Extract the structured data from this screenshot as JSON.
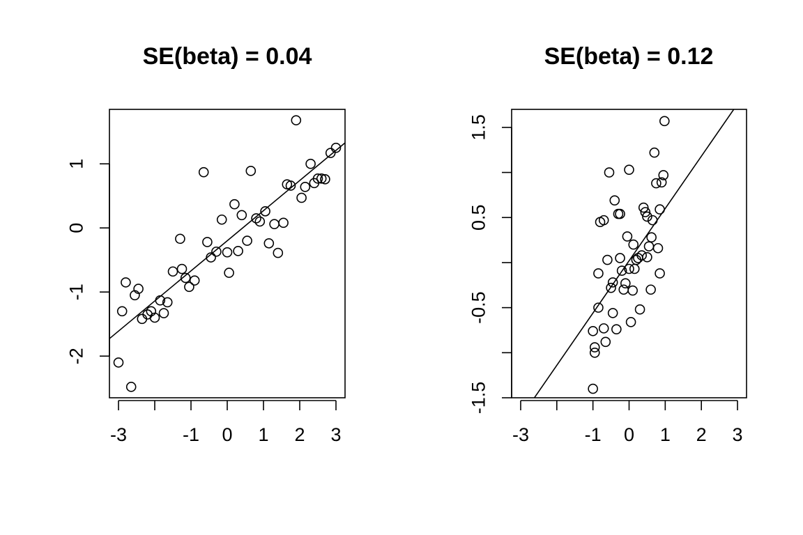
{
  "chart_data": [
    {
      "type": "scatter",
      "title": "SE(beta) = 0.04",
      "xlabel": "",
      "ylabel": "",
      "xlim": [
        -3.25,
        3.25
      ],
      "ylim": [
        -2.65,
        1.85
      ],
      "x_ticks": [
        -3,
        -2,
        -1,
        0,
        1,
        2,
        3
      ],
      "x_tick_labels": [
        "-3",
        "",
        "-1",
        "0",
        "1",
        "2",
        "3"
      ],
      "y_ticks": [
        -2,
        -1,
        0,
        1
      ],
      "y_tick_labels": [
        "-2",
        "-1",
        "0",
        "1"
      ],
      "fit_line": {
        "intercept": -0.2,
        "slope": 0.47
      },
      "points": [
        [
          -3.0,
          -2.1
        ],
        [
          -2.9,
          -1.3
        ],
        [
          -2.8,
          -0.85
        ],
        [
          -2.65,
          -2.48
        ],
        [
          -2.55,
          -1.05
        ],
        [
          -2.45,
          -0.95
        ],
        [
          -2.35,
          -1.42
        ],
        [
          -2.2,
          -1.35
        ],
        [
          -2.1,
          -1.3
        ],
        [
          -2.0,
          -1.4
        ],
        [
          -1.85,
          -1.13
        ],
        [
          -1.65,
          -1.16
        ],
        [
          -1.75,
          -1.33
        ],
        [
          -1.5,
          -0.68
        ],
        [
          -1.25,
          -0.64
        ],
        [
          -1.15,
          -0.78
        ],
        [
          -1.05,
          -0.92
        ],
        [
          -1.3,
          -0.17
        ],
        [
          -0.9,
          -0.82
        ],
        [
          -0.65,
          0.87
        ],
        [
          -0.55,
          -0.22
        ],
        [
          -0.45,
          -0.46
        ],
        [
          -0.3,
          -0.37
        ],
        [
          -0.15,
          0.13
        ],
        [
          0.0,
          -0.38
        ],
        [
          0.05,
          -0.7
        ],
        [
          0.2,
          0.37
        ],
        [
          0.3,
          -0.36
        ],
        [
          0.4,
          0.2
        ],
        [
          0.55,
          -0.2
        ],
        [
          0.65,
          0.89
        ],
        [
          0.8,
          0.15
        ],
        [
          0.9,
          0.1
        ],
        [
          1.05,
          0.26
        ],
        [
          1.15,
          -0.24
        ],
        [
          1.3,
          0.06
        ],
        [
          1.4,
          -0.39
        ],
        [
          1.55,
          0.08
        ],
        [
          1.65,
          0.68
        ],
        [
          1.75,
          0.66
        ],
        [
          1.9,
          1.68
        ],
        [
          2.05,
          0.47
        ],
        [
          2.15,
          0.64
        ],
        [
          2.3,
          1.0
        ],
        [
          2.4,
          0.7
        ],
        [
          2.5,
          0.77
        ],
        [
          2.6,
          0.77
        ],
        [
          2.7,
          0.76
        ],
        [
          2.85,
          1.17
        ],
        [
          3.0,
          1.25
        ]
      ]
    },
    {
      "type": "scatter",
      "title": "SE(beta) = 0.12",
      "xlabel": "",
      "ylabel": "",
      "xlim": [
        -3.25,
        3.25
      ],
      "ylim": [
        -1.5,
        1.7
      ],
      "x_ticks": [
        -3,
        -2,
        -1,
        0,
        1,
        2,
        3
      ],
      "x_tick_labels": [
        "-3",
        "",
        "-1",
        "0",
        "1",
        "2",
        "3"
      ],
      "y_ticks": [
        -1.5,
        -1,
        -0.5,
        0,
        0.5,
        1,
        1.5
      ],
      "y_tick_labels": [
        "-1.5",
        "",
        "-0.5",
        "",
        "0.5",
        "",
        "1.5"
      ],
      "fit_line": {
        "intercept": 0.02,
        "slope": 0.58
      },
      "points": [
        [
          -1.0,
          -1.4
        ],
        [
          -1.0,
          -0.76
        ],
        [
          -0.95,
          -1.0
        ],
        [
          -0.95,
          -0.94
        ],
        [
          -0.85,
          -0.5
        ],
        [
          -0.85,
          -0.12
        ],
        [
          -0.8,
          0.45
        ],
        [
          -0.7,
          0.47
        ],
        [
          -0.7,
          -0.73
        ],
        [
          -0.65,
          -0.88
        ],
        [
          -0.6,
          0.03
        ],
        [
          -0.55,
          1.0
        ],
        [
          -0.5,
          -0.28
        ],
        [
          -0.45,
          -0.22
        ],
        [
          -0.45,
          -0.56
        ],
        [
          -0.4,
          0.69
        ],
        [
          -0.35,
          -0.74
        ],
        [
          -0.3,
          0.54
        ],
        [
          -0.25,
          0.54
        ],
        [
          -0.25,
          0.05
        ],
        [
          -0.2,
          -0.09
        ],
        [
          -0.15,
          -0.3
        ],
        [
          -0.1,
          -0.23
        ],
        [
          -0.05,
          0.29
        ],
        [
          0.0,
          -0.07
        ],
        [
          0.0,
          1.03
        ],
        [
          0.05,
          -0.66
        ],
        [
          0.1,
          -0.31
        ],
        [
          0.12,
          0.2
        ],
        [
          0.15,
          -0.07
        ],
        [
          0.2,
          0.03
        ],
        [
          0.25,
          0.05
        ],
        [
          0.3,
          -0.52
        ],
        [
          0.35,
          0.08
        ],
        [
          0.4,
          0.61
        ],
        [
          0.45,
          0.56
        ],
        [
          0.5,
          0.51
        ],
        [
          0.5,
          0.06
        ],
        [
          0.55,
          0.18
        ],
        [
          0.6,
          -0.3
        ],
        [
          0.62,
          0.28
        ],
        [
          0.65,
          0.47
        ],
        [
          0.7,
          1.22
        ],
        [
          0.75,
          0.88
        ],
        [
          0.8,
          0.16
        ],
        [
          0.85,
          0.59
        ],
        [
          0.85,
          -0.12
        ],
        [
          0.9,
          0.89
        ],
        [
          0.95,
          0.97
        ],
        [
          0.98,
          1.57
        ]
      ]
    }
  ]
}
